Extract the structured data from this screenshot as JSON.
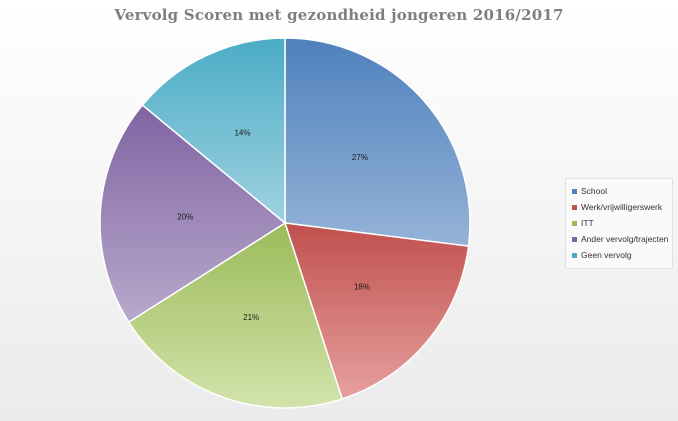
{
  "chart_data": {
    "type": "pie",
    "title": "Vervolg Scoren met gezondheid jongeren 2016/2017",
    "categories": [
      "School",
      "Werk/vrijwilligerswerk",
      "ITT",
      "Ander vervolg/trajecten",
      "Geen vervolg"
    ],
    "values": [
      27,
      18,
      21,
      20,
      14
    ],
    "data_labels": [
      "27%",
      "18%",
      "21%",
      "20%",
      "14%"
    ],
    "colors": [
      {
        "dark": "#4f81bd",
        "light": "#95b3d7"
      },
      {
        "dark": "#c0504d",
        "light": "#e6a09e"
      },
      {
        "dark": "#9bbb59",
        "light": "#d2e3ab"
      },
      {
        "dark": "#8064a2",
        "light": "#b8a9cc"
      },
      {
        "dark": "#4bacc6",
        "light": "#9fd2e0"
      }
    ],
    "legend_position": "right",
    "start_angle": "12 o'clock",
    "direction": "clockwise"
  }
}
